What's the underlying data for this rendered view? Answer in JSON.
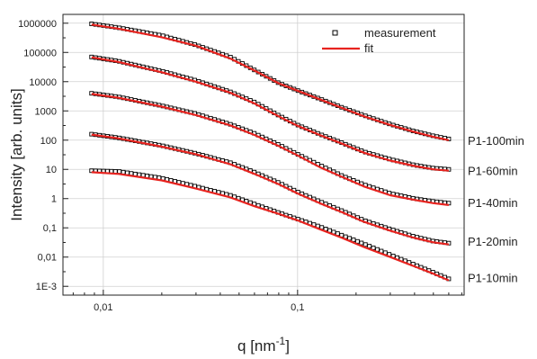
{
  "chart_data": {
    "type": "scatter",
    "x_scale": "log",
    "y_scale": "log",
    "xlim": [
      0.0062,
      0.72
    ],
    "ylim": [
      0.0005,
      2000000
    ],
    "grid": true,
    "legend_position": "top-right",
    "xlabel": "q [nm",
    "xlabel_superscript": "-1",
    "xlabel_suffix": "]",
    "ylabel": "Intensity [arb. units]",
    "x_ticks": [
      {
        "value": 0.01,
        "label": "0,01"
      },
      {
        "value": 0.1,
        "label": "0,1"
      }
    ],
    "y_ticks": [
      {
        "value": 1000000,
        "label": "1000000"
      },
      {
        "value": 100000,
        "label": "100000"
      },
      {
        "value": 10000,
        "label": "10000"
      },
      {
        "value": 1000,
        "label": "1000"
      },
      {
        "value": 100,
        "label": "100"
      },
      {
        "value": 10,
        "label": "10"
      },
      {
        "value": 1,
        "label": "1"
      },
      {
        "value": 0.1,
        "label": "0,1"
      },
      {
        "value": 0.01,
        "label": "0,01"
      },
      {
        "value": 0.001,
        "label": "1E-3"
      }
    ],
    "legend": [
      {
        "label": "measurement",
        "marker": "open-square",
        "color": "#000000"
      },
      {
        "label": "fit",
        "marker": "line",
        "color": "#e8231f"
      }
    ],
    "series": [
      {
        "name": "P1-100min",
        "label_y": 100,
        "x": [
          0.0087,
          0.012,
          0.02,
          0.03,
          0.045,
          0.06,
          0.08,
          0.1,
          0.13,
          0.17,
          0.22,
          0.3,
          0.4,
          0.5,
          0.6
        ],
        "measurement": [
          950000,
          700000,
          380000,
          180000,
          70000,
          25000,
          9000,
          5000,
          2600,
          1300,
          700,
          350,
          200,
          140,
          110
        ],
        "fit": [
          900000,
          650000,
          330000,
          170000,
          62000,
          24000,
          8800,
          4900,
          2500,
          1250,
          650,
          330,
          190,
          130,
          100
        ]
      },
      {
        "name": "P1-60min",
        "label_y": 9,
        "x": [
          0.0087,
          0.012,
          0.02,
          0.03,
          0.045,
          0.06,
          0.08,
          0.1,
          0.13,
          0.17,
          0.22,
          0.3,
          0.4,
          0.5,
          0.6
        ],
        "measurement": [
          70000,
          50000,
          23000,
          11000,
          4500,
          2000,
          700,
          330,
          160,
          80,
          40,
          22,
          14,
          11,
          10
        ],
        "fit": [
          68000,
          47000,
          21000,
          10000,
          4200,
          1800,
          650,
          310,
          150,
          75,
          37,
          20,
          13,
          10,
          9
        ]
      },
      {
        "name": "P1-40min",
        "label_y": 0.75,
        "x": [
          0.0087,
          0.012,
          0.02,
          0.03,
          0.045,
          0.06,
          0.08,
          0.1,
          0.13,
          0.17,
          0.22,
          0.3,
          0.4,
          0.5,
          0.6
        ],
        "measurement": [
          4000,
          3000,
          1500,
          800,
          350,
          170,
          70,
          33,
          14,
          6,
          3,
          1.5,
          1,
          0.8,
          0.7
        ],
        "fit": [
          3800,
          2800,
          1400,
          720,
          320,
          150,
          63,
          30,
          12,
          5.5,
          2.6,
          1.3,
          0.9,
          0.7,
          0.6
        ]
      },
      {
        "name": "P1-20min",
        "label_y": 0.035,
        "x": [
          0.0087,
          0.012,
          0.02,
          0.03,
          0.045,
          0.06,
          0.08,
          0.1,
          0.13,
          0.17,
          0.22,
          0.3,
          0.4,
          0.5,
          0.6
        ],
        "measurement": [
          160,
          120,
          65,
          35,
          17,
          8,
          3.5,
          1.7,
          0.8,
          0.38,
          0.18,
          0.09,
          0.05,
          0.035,
          0.03
        ],
        "fit": [
          155,
          115,
          60,
          33,
          15,
          7,
          3.1,
          1.5,
          0.7,
          0.34,
          0.16,
          0.08,
          0.045,
          0.032,
          0.027
        ]
      },
      {
        "name": "P1-10min",
        "label_y": 0.002,
        "x": [
          0.0087,
          0.012,
          0.02,
          0.03,
          0.045,
          0.06,
          0.08,
          0.1,
          0.13,
          0.17,
          0.22,
          0.3,
          0.4,
          0.5,
          0.6
        ],
        "measurement": [
          9,
          8.5,
          5,
          2.6,
          1.3,
          0.65,
          0.33,
          0.2,
          0.11,
          0.055,
          0.028,
          0.012,
          0.0055,
          0.003,
          0.0018
        ],
        "fit": [
          8,
          7,
          4.2,
          2.2,
          1.1,
          0.55,
          0.3,
          0.18,
          0.09,
          0.045,
          0.022,
          0.01,
          0.0048,
          0.0027,
          0.0016
        ]
      }
    ]
  }
}
